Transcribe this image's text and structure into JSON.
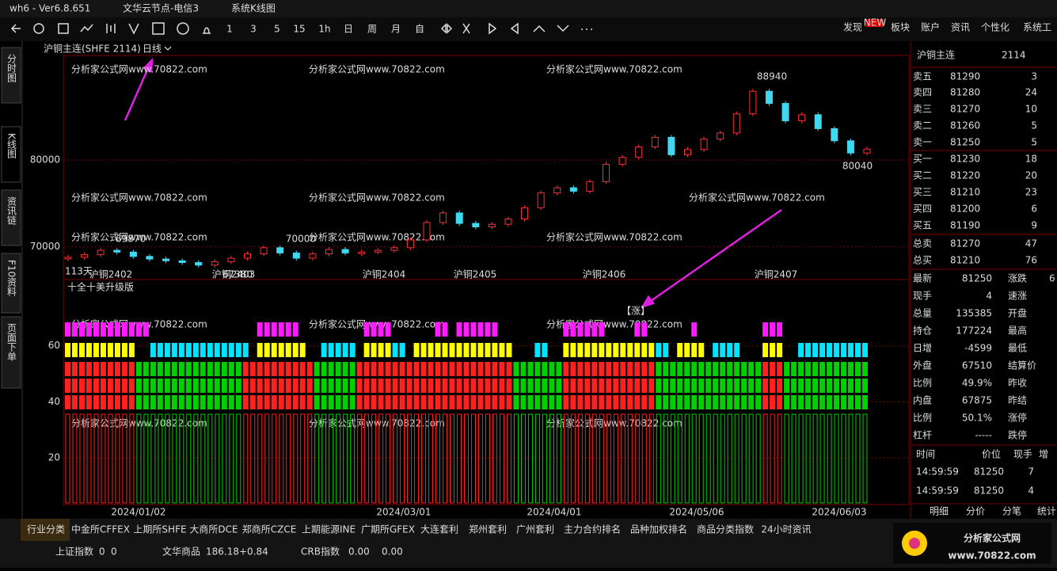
{
  "title_bar": {
    "app": "wh6 - Ver6.8.651",
    "node": "文华云节点-电信3",
    "view": "系统K线图"
  },
  "toolbar": {
    "periods": [
      "1",
      "3",
      "5",
      "15",
      "1h",
      "日",
      "周",
      "月",
      "自"
    ],
    "menu": [
      "发现",
      "板块",
      "账户",
      "资讯",
      "个性化",
      "系统工"
    ],
    "badge": "NEW"
  },
  "side_tabs": [
    "分时图",
    "K线图",
    "资讯链",
    "F10资料",
    "页面下单"
  ],
  "watermark": "分析家公式网www.70822.com",
  "chart_data": [
    {
      "type": "candlestick",
      "title": "沪铜主连(SHFE 2114)",
      "period": "日线",
      "closes": [
        68800,
        69100,
        69600,
        69400,
        68900,
        68600,
        68400,
        68200,
        67900,
        68300,
        68700,
        69200,
        69900,
        69300,
        68700,
        69200,
        69700,
        69300,
        69400,
        69600,
        69900,
        70800,
        72800,
        73900,
        72700,
        72300,
        72600,
        73200,
        74500,
        76200,
        76800,
        76400,
        77500,
        79500,
        80300,
        81500,
        82600,
        80600,
        81200,
        82400,
        83100,
        85300,
        87900,
        86500,
        84500,
        85200,
        83600,
        82200,
        80800,
        81250
      ],
      "up_color": "#ff3030",
      "down_color": "#40d8f0",
      "ylim": [
        66330,
        92020
      ],
      "yticks": [
        70000,
        80000
      ],
      "grid": true,
      "annotations": [
        "69870",
        "70000",
        "88940",
        "80040",
        "67380"
      ],
      "day_count": "113天",
      "contracts": [
        "沪铜2402",
        "沪铜2403",
        "沪铜2404",
        "沪铜2405",
        "沪铜2406",
        "沪铜2407"
      ],
      "dates": [
        "2024/01/02",
        "2024/03/01",
        "2024/04/01",
        "2024/05/06",
        "2024/06/03"
      ]
    },
    {
      "type": "segments",
      "title": "十全十美升级版",
      "signal": "【涨】",
      "columns": 113,
      "ylim": [
        5,
        83.7
      ],
      "yticks": [
        20,
        40,
        60
      ],
      "grid": true,
      "pink": {
        "color": "#ff1aff",
        "segments": [
          [
            0,
            11
          ],
          [
            27,
            32
          ],
          [
            42,
            45
          ],
          [
            52,
            53
          ],
          [
            55,
            60
          ],
          [
            70,
            75
          ],
          [
            80,
            81
          ],
          [
            88,
            88
          ],
          [
            98,
            100
          ]
        ]
      },
      "band": [
        [
          0,
          9,
          "#ffff00"
        ],
        [
          12,
          25,
          "#00e5ff"
        ],
        [
          27,
          33,
          "#ffff00"
        ],
        [
          36,
          40,
          "#00e5ff"
        ],
        [
          42,
          45,
          "#ffff00"
        ],
        [
          46,
          47,
          "#00e5ff"
        ],
        [
          49,
          62,
          "#ffff00"
        ],
        [
          66,
          67,
          "#00e5ff"
        ],
        [
          70,
          82,
          "#ffff00"
        ],
        [
          83,
          84,
          "#00e5ff"
        ],
        [
          86,
          89,
          "#ffff00"
        ],
        [
          91,
          94,
          "#00e5ff"
        ],
        [
          98,
          100,
          "#ffff00"
        ],
        [
          103,
          112,
          "#00e5ff"
        ]
      ],
      "trend": [
        [
          0,
          9,
          "#ff2020"
        ],
        [
          10,
          24,
          "#00d000"
        ],
        [
          25,
          34,
          "#ff2020"
        ],
        [
          35,
          40,
          "#00d000"
        ],
        [
          41,
          62,
          "#ff2020"
        ],
        [
          63,
          69,
          "#00d000"
        ],
        [
          70,
          82,
          "#ff2020"
        ],
        [
          83,
          97,
          "#00d000"
        ],
        [
          98,
          100,
          "#ff2020"
        ],
        [
          101,
          112,
          "#00d000"
        ]
      ]
    }
  ],
  "quote": {
    "name": "沪铜主连",
    "code": "2114",
    "book": [
      [
        "卖五",
        "81290",
        "3"
      ],
      [
        "卖四",
        "81280",
        "24"
      ],
      [
        "卖三",
        "81270",
        "10"
      ],
      [
        "卖二",
        "81260",
        "5"
      ],
      [
        "卖一",
        "81250",
        "5"
      ],
      [
        "买一",
        "81230",
        "18"
      ],
      [
        "买二",
        "81220",
        "20"
      ],
      [
        "买三",
        "81210",
        "23"
      ],
      [
        "买四",
        "81200",
        "6"
      ],
      [
        "买五",
        "81190",
        "9"
      ],
      [
        "总卖",
        "81270",
        "47"
      ],
      [
        "总买",
        "81210",
        "76"
      ]
    ],
    "stats": [
      [
        "最新",
        "81250",
        "涨跌",
        "6"
      ],
      [
        "现手",
        "4",
        "速涨"
      ],
      [
        "总量",
        "135385",
        "开盘"
      ],
      [
        "持仓",
        "177224",
        "最高"
      ],
      [
        "日增",
        "-4599",
        "最低"
      ],
      [
        "外盘",
        "67510",
        "结算价"
      ],
      [
        "比例",
        "49.9%",
        "昨收"
      ],
      [
        "内盘",
        "67875",
        "昨结"
      ],
      [
        "比例",
        "50.1%",
        "涨停"
      ],
      [
        "杠杆",
        "-----",
        "跌停"
      ]
    ],
    "ticks_header": [
      "时间",
      "价位",
      "现手",
      "增"
    ],
    "ticks": [
      [
        "14:59:59",
        "81250",
        "7"
      ],
      [
        "14:59:59",
        "81250",
        "4"
      ]
    ],
    "tabs": [
      "明细",
      "分价",
      "分笔",
      "统计"
    ]
  },
  "market_tabs": [
    "行业分类",
    "中金所CFFEX",
    "上期所SHFE",
    "大商所DCE",
    "郑商所CZCE",
    "上期能源INE",
    "广期所GFEX",
    "大连套利",
    "郑州套利",
    "广州套利",
    "主力合约排名",
    "品种加权排名",
    "商品分类指数",
    "24小时资讯"
  ],
  "status": [
    [
      "上证指数",
      "0",
      "0"
    ],
    [
      "文华商品",
      "186.18",
      "+0.84"
    ],
    [
      "CRB指数",
      "0.00",
      "0.00"
    ]
  ],
  "logo": {
    "name": "分析家公式网",
    "url": "www.70822.com"
  }
}
